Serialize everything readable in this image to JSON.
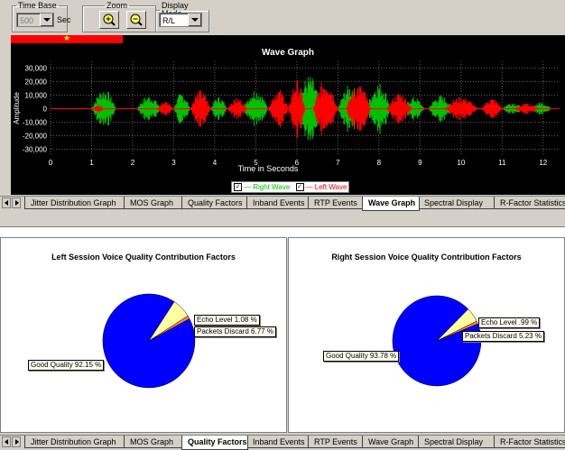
{
  "toolbar": {
    "time_base": {
      "legend": "Time Base",
      "value": "500",
      "unit": "Sec"
    },
    "zoom": {
      "legend": "Zoom"
    },
    "display_mode": {
      "legend": "Display Mode",
      "value": "R/L"
    }
  },
  "wave_graph": {
    "chart_data": {
      "type": "line",
      "title": "Wave Graph",
      "xlabel": "Time in Seconds",
      "ylabel": "Amplitude",
      "x_ticks": [
        "0",
        "1",
        "2",
        "3",
        "4",
        "5",
        "6",
        "7",
        "8",
        "9",
        "10",
        "11",
        "12"
      ],
      "y_ticks": [
        "30,000",
        "20,000",
        "10,000",
        "0",
        "-10,000",
        "-20,000",
        "-30,000"
      ],
      "xlim": [
        0,
        12.4
      ],
      "ylim": [
        -35000,
        35000
      ],
      "grid": true,
      "series": [
        {
          "name": "Right Wave",
          "color": "#00c000",
          "bursts": [
            [
              1.0,
              1.6,
              15000
            ],
            [
              2.1,
              2.7,
              10000
            ],
            [
              3.0,
              3.4,
              12000
            ],
            [
              3.9,
              4.3,
              9000
            ],
            [
              4.7,
              5.3,
              15000
            ],
            [
              6.0,
              6.6,
              25000
            ],
            [
              7.0,
              7.6,
              18000
            ],
            [
              7.7,
              8.3,
              20000
            ],
            [
              8.6,
              9.1,
              9000
            ],
            [
              9.2,
              9.8,
              10000
            ],
            [
              11.0,
              11.5,
              5000
            ],
            [
              11.7,
              12.2,
              5000
            ]
          ]
        },
        {
          "name": "Left Wave",
          "color": "#ff0000",
          "bursts": [
            [
              1.0,
              1.3,
              3000
            ],
            [
              2.6,
              3.0,
              6000
            ],
            [
              3.4,
              3.9,
              14000
            ],
            [
              4.3,
              4.8,
              8000
            ],
            [
              5.3,
              5.8,
              15000
            ],
            [
              5.8,
              6.2,
              22000
            ],
            [
              6.4,
              7.0,
              23000
            ],
            [
              7.2,
              7.8,
              19000
            ],
            [
              8.2,
              8.8,
              12000
            ],
            [
              9.6,
              10.4,
              9000
            ],
            [
              10.5,
              11.0,
              8000
            ],
            [
              11.3,
              11.9,
              4000
            ]
          ]
        }
      ],
      "legend": [
        {
          "label": "— Right Wave",
          "color": "#00c000"
        },
        {
          "label": "— Left Wave",
          "color": "#ff0000"
        }
      ]
    }
  },
  "tabs": [
    "Jitter Distribution Graph",
    "MOS Graph",
    "Quality Factors",
    "Inband Events",
    "RTP Events",
    "Wave Graph",
    "Spectral Display",
    "R-Factor Statistics"
  ],
  "top_tabs_active": "Wave Graph",
  "bottom_tabs_active": "Quality Factors",
  "quality": {
    "chart_data": [
      {
        "type": "pie",
        "title": "Left Session Voice Quality Contribution Factors",
        "slices": [
          {
            "label": "Good Quality 92.15 %",
            "value": 92.15,
            "color": "#0000ff"
          },
          {
            "label": "Packets Discard 6.77 %",
            "value": 6.77,
            "color": "#ffffa0"
          },
          {
            "label": "Echo Level 1.08 %",
            "value": 1.08,
            "color": "#ff8040"
          }
        ]
      },
      {
        "type": "pie",
        "title": "Right Session Voice Quality Contribution Factors",
        "slices": [
          {
            "label": "Good Quality 93.78 %",
            "value": 93.78,
            "color": "#0000ff"
          },
          {
            "label": "Packets Discard 5.23 %",
            "value": 5.23,
            "color": "#ffffa0"
          },
          {
            "label": "Echo Level .99 %",
            "value": 0.99,
            "color": "#ff8040"
          }
        ]
      }
    ]
  }
}
